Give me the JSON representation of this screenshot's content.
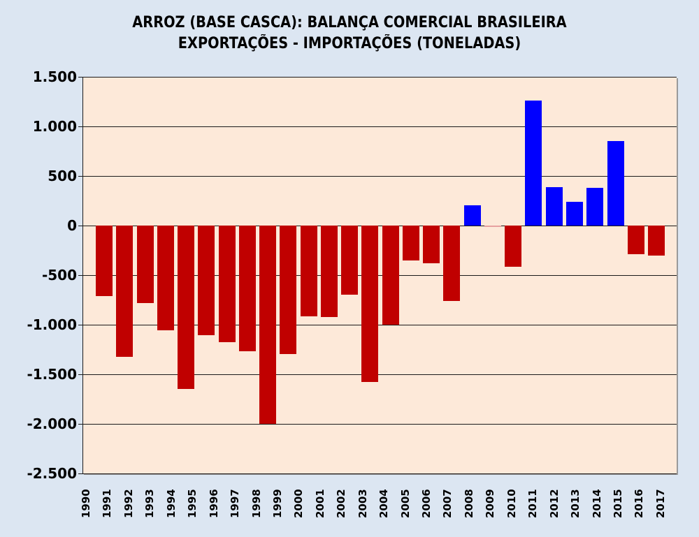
{
  "chart_data": {
    "type": "bar",
    "title": "ARROZ (BASE CASCA): BALANÇA COMERCIAL BRASILEIRA",
    "subtitle": "EXPORTAÇÕES - IMPORTAÇÕES (TONELADAS)",
    "xlabel": "",
    "ylabel": "",
    "ylim": [
      -2500,
      1500
    ],
    "yticks": [
      "1.500",
      "1.000",
      "500",
      "0",
      "-500",
      "-1.000",
      "-1.500",
      "-2.000",
      "-2.500"
    ],
    "ytick_values": [
      1500,
      1000,
      500,
      0,
      -500,
      -1000,
      -1500,
      -2000,
      -2500
    ],
    "grid": true,
    "legend": null,
    "categories": [
      "1990",
      "1991",
      "1992",
      "1993",
      "1994",
      "1995",
      "1996",
      "1997",
      "1998",
      "1999",
      "2000",
      "2001",
      "2002",
      "2003",
      "2004",
      "2005",
      "2006",
      "2007",
      "2008",
      "2009",
      "2010",
      "2011",
      "2012",
      "2013",
      "2014",
      "2015",
      "2016",
      "2017"
    ],
    "values": [
      -710,
      -1325,
      -783,
      -1054,
      -1650,
      -1103,
      -1173,
      -1269,
      -2001,
      -1299,
      -919,
      -926,
      -694,
      -1580,
      -1003,
      -351,
      -377,
      -760,
      201,
      -10,
      -418,
      1260,
      384,
      238,
      377,
      853,
      -292,
      -306
    ],
    "colors": {
      "positive": "#0000ff",
      "negative": "#c00000",
      "plot_background": "#fde9d9",
      "page_background": "#dce6f2"
    }
  }
}
